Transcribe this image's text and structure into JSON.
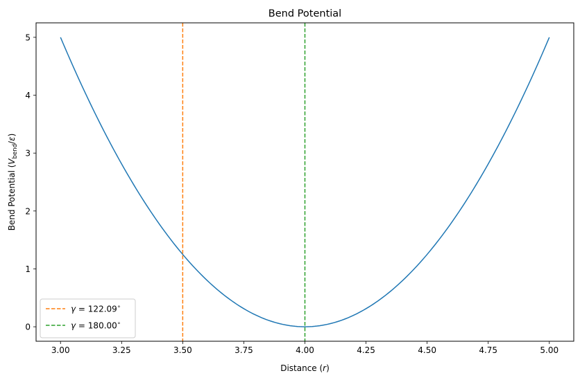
{
  "chart_data": {
    "type": "line",
    "title": "Bend Potential",
    "xlabel": "Distance (r)",
    "xlabel_parts": {
      "main": "Distance (",
      "var": "r",
      "close": ")"
    },
    "ylabel": "Bend Potential (V_bend/ε)",
    "ylabel_parts": {
      "main": "Bend Potential (",
      "var": "V",
      "sub": "bend",
      "slash": "/",
      "eps": "ε",
      "close": ")"
    },
    "xlim": [
      2.9,
      5.1
    ],
    "ylim": [
      -0.25,
      5.25
    ],
    "xticks": [
      3.0,
      3.25,
      3.5,
      3.75,
      4.0,
      4.25,
      4.5,
      4.75,
      5.0
    ],
    "xtick_labels": [
      "3.00",
      "3.25",
      "3.50",
      "3.75",
      "4.00",
      "4.25",
      "4.50",
      "4.75",
      "5.00"
    ],
    "yticks": [
      0,
      1,
      2,
      3,
      4,
      5
    ],
    "ytick_labels": [
      "0",
      "1",
      "2",
      "3",
      "4",
      "5"
    ],
    "grid": false,
    "legend_position": "lower-left",
    "series": [
      {
        "color": "#1f77b4",
        "style": "solid",
        "x": [
          3.0,
          3.1,
          3.2,
          3.3,
          3.4,
          3.5,
          3.6,
          3.7,
          3.8,
          3.9,
          4.0,
          4.1,
          4.2,
          4.3,
          4.4,
          4.5,
          4.6,
          4.7,
          4.8,
          4.9,
          5.0
        ],
        "y": [
          5.0,
          4.05,
          3.2,
          2.45,
          1.8,
          1.25,
          0.8,
          0.45,
          0.2,
          0.05,
          0.0,
          0.05,
          0.2,
          0.45,
          0.8,
          1.25,
          1.8,
          2.45,
          3.2,
          4.05,
          5.0
        ]
      }
    ],
    "vlines": [
      {
        "x": 3.5,
        "color": "#ff7f0e",
        "style": "dashed",
        "label_var": "γ",
        "label_eq": " = ",
        "label_val": "122.09",
        "label_deg": "∘"
      },
      {
        "x": 4.0,
        "color": "#2ca02c",
        "style": "dashed",
        "label_var": "γ",
        "label_eq": " = ",
        "label_val": "180.00",
        "label_deg": "∘"
      }
    ]
  }
}
